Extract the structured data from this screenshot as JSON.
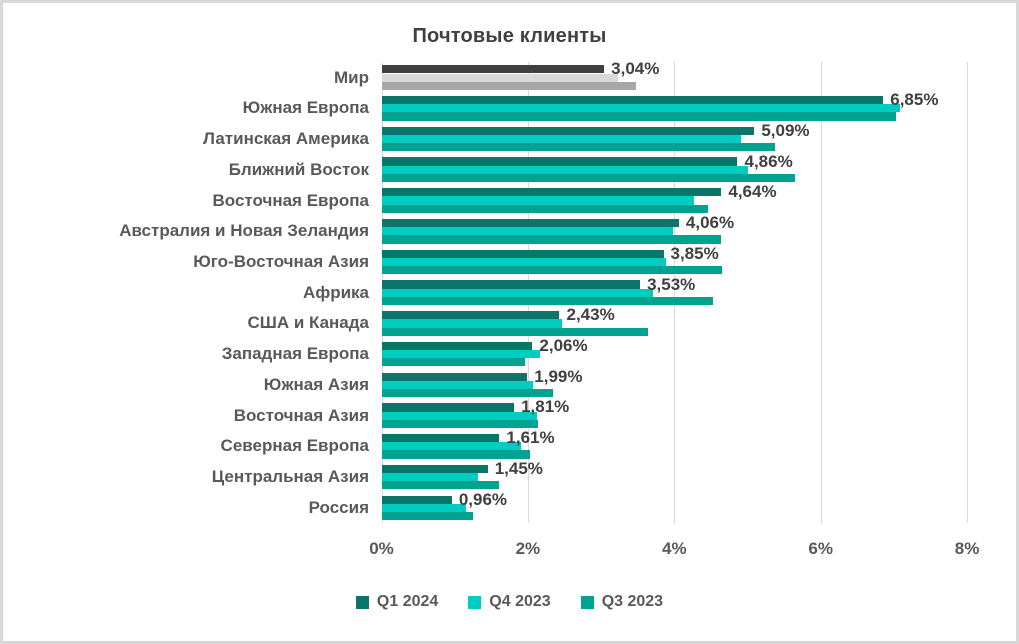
{
  "chart_data": {
    "type": "bar",
    "orientation": "horizontal",
    "title": "Почтовые клиенты",
    "categories": [
      "Мир",
      "Южная Европа",
      "Латинская Америка",
      "Ближний Восток",
      "Восточная Европа",
      "Австралия и Новая Зеландия",
      "Юго-Восточная Азия",
      "Африка",
      "США и Канада",
      "Западная Европа",
      "Южная Азия",
      "Восточная Азия",
      "Северная Европа",
      "Центральная Азия",
      "Россия"
    ],
    "series": [
      {
        "name": "Q1 2024",
        "color": "#0B7569",
        "values": [
          3.04,
          6.85,
          5.09,
          4.86,
          4.64,
          4.06,
          3.85,
          3.53,
          2.43,
          2.06,
          1.99,
          1.81,
          1.61,
          1.45,
          0.96
        ]
      },
      {
        "name": "Q4 2023",
        "color": "#00CDBF",
        "values": [
          3.23,
          7.08,
          4.91,
          5.0,
          4.26,
          3.98,
          3.89,
          3.71,
          2.46,
          2.17,
          2.07,
          2.12,
          1.91,
          1.32,
          1.15
        ]
      },
      {
        "name": "Q3 2023",
        "color": "#00A390",
        "values": [
          3.48,
          7.03,
          5.37,
          5.65,
          4.46,
          4.64,
          4.65,
          4.53,
          3.64,
          1.96,
          2.34,
          2.14,
          2.03,
          1.6,
          1.25
        ]
      }
    ],
    "data_labels": {
      "attached_to_series": "Q1 2024",
      "values": [
        "3,04%",
        "6,85%",
        "5,09%",
        "4,86%",
        "4,64%",
        "4,06%",
        "3,85%",
        "3,53%",
        "2,43%",
        "2,06%",
        "1,99%",
        "1,81%",
        "1,61%",
        "1,45%",
        "0,96%"
      ]
    },
    "highlight_category": {
      "name": "Мир",
      "index": 0,
      "colors": [
        "#404040",
        "#D9D9D9",
        "#A6A6A6"
      ]
    },
    "x_axis": {
      "min": 0,
      "max": 8,
      "ticks": [
        "0%",
        "2%",
        "4%",
        "6%",
        "8%"
      ],
      "grid": true
    },
    "legend": {
      "position": "bottom",
      "entries": [
        "Q1 2024",
        "Q4 2023",
        "Q3 2023"
      ]
    },
    "style_colors": {
      "grid": "#D9D9D9",
      "title_text": "#404040",
      "axis_text": "#595959",
      "category_text": "#595959",
      "data_label_text": "#404040",
      "background": "#FFFFFF",
      "frame_border": "#D8D8D8"
    }
  }
}
